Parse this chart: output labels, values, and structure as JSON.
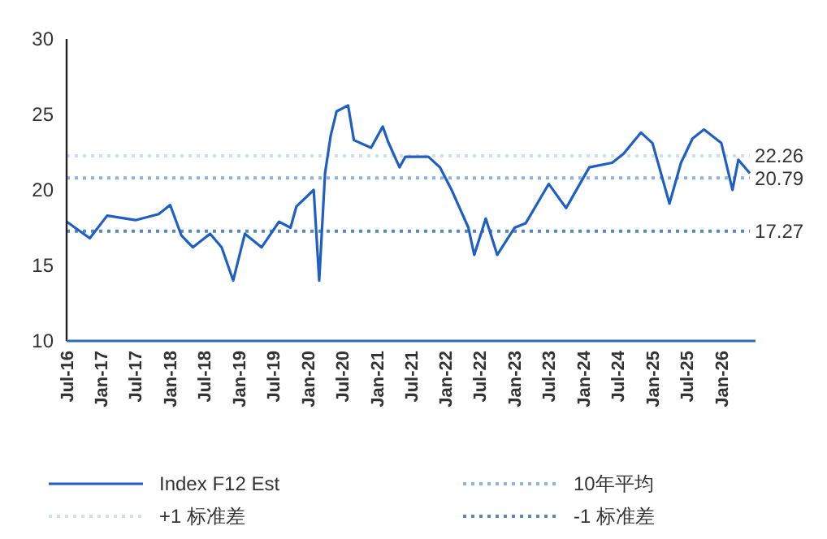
{
  "chart_data": {
    "type": "line",
    "xlim": [
      "2016-07",
      "2026-07"
    ],
    "ylim": [
      10,
      30
    ],
    "yticks": [
      10,
      15,
      20,
      25,
      30
    ],
    "xticks": [
      {
        "value": "2016-07",
        "label": "Jul-16"
      },
      {
        "value": "2017-01",
        "label": "Jan-17"
      },
      {
        "value": "2017-07",
        "label": "Jul-17"
      },
      {
        "value": "2018-01",
        "label": "Jan-18"
      },
      {
        "value": "2018-07",
        "label": "Jul-18"
      },
      {
        "value": "2019-01",
        "label": "Jan-19"
      },
      {
        "value": "2019-07",
        "label": "Jul-19"
      },
      {
        "value": "2020-01",
        "label": "Jan-20"
      },
      {
        "value": "2020-07",
        "label": "Jul-20"
      },
      {
        "value": "2021-01",
        "label": "Jan-21"
      },
      {
        "value": "2021-07",
        "label": "Jul-21"
      },
      {
        "value": "2022-01",
        "label": "Jan-22"
      },
      {
        "value": "2022-07",
        "label": "Jul-22"
      },
      {
        "value": "2023-01",
        "label": "Jan-23"
      },
      {
        "value": "2023-07",
        "label": "Jul-23"
      },
      {
        "value": "2024-01",
        "label": "Jan-24"
      },
      {
        "value": "2024-07",
        "label": "Jul-24"
      },
      {
        "value": "2025-01",
        "label": "Jan-25"
      },
      {
        "value": "2025-07",
        "label": "Jul-25"
      },
      {
        "value": "2026-01",
        "label": "Jan-26"
      }
    ],
    "grid": false,
    "legend": "bottom",
    "series": [
      {
        "name": "Index F12 Est",
        "color": "#1f5fc4",
        "line_style": "solid",
        "x": [
          "2016-07",
          "2016-11",
          "2017-02",
          "2017-07",
          "2017-11",
          "2018-01",
          "2018-03",
          "2018-05",
          "2018-08",
          "2018-10",
          "2018-12",
          "2019-02",
          "2019-05",
          "2019-08",
          "2019-10",
          "2019-11",
          "2020-02",
          "2020-03",
          "2020-04",
          "2020-05",
          "2020-06",
          "2020-08",
          "2020-09",
          "2020-12",
          "2021-02",
          "2021-03",
          "2021-05",
          "2021-06",
          "2021-10",
          "2021-12",
          "2022-02",
          "2022-05",
          "2022-06",
          "2022-08",
          "2022-10",
          "2023-01",
          "2023-03",
          "2023-07",
          "2023-10",
          "2024-02",
          "2024-06",
          "2024-08",
          "2024-11",
          "2025-01",
          "2025-04",
          "2025-06",
          "2025-08",
          "2025-10",
          "2026-01",
          "2026-03",
          "2026-04",
          "2026-06"
        ],
        "values": [
          17.9,
          16.8,
          18.3,
          18.0,
          18.4,
          19.0,
          17.0,
          16.2,
          17.1,
          16.2,
          14.0,
          17.1,
          16.2,
          17.9,
          17.5,
          18.9,
          20.0,
          14.0,
          21.1,
          23.6,
          25.2,
          25.6,
          23.3,
          22.8,
          24.2,
          23.2,
          21.5,
          22.2,
          22.2,
          21.5,
          20.0,
          17.5,
          15.7,
          18.1,
          15.7,
          17.5,
          17.8,
          20.4,
          18.8,
          21.5,
          21.8,
          22.4,
          23.8,
          23.1,
          19.1,
          21.8,
          23.4,
          24.0,
          23.1,
          20.0,
          22.0,
          21.1
        ]
      },
      {
        "name": "10年平均",
        "color": "#8fb3d9",
        "line_style": "dotted",
        "x": [
          "2016-07",
          "2026-06"
        ],
        "values": [
          20.79,
          20.79
        ]
      },
      {
        "name": "+1 标准差",
        "color": "#cfe0f0",
        "line_style": "dotted",
        "x": [
          "2016-07",
          "2026-06"
        ],
        "values": [
          22.26,
          22.26
        ]
      },
      {
        "name": "-1 标准差",
        "color": "#5a86b8",
        "line_style": "dotted",
        "x": [
          "2016-07",
          "2026-06"
        ],
        "values": [
          17.27,
          17.27
        ]
      }
    ],
    "annotations": [
      {
        "text": "22.26",
        "x": "2026-06",
        "y": 22.26
      },
      {
        "text": "20.79",
        "x": "2026-06",
        "y": 20.79
      },
      {
        "text": "17.27",
        "x": "2026-06",
        "y": 17.27
      }
    ]
  }
}
